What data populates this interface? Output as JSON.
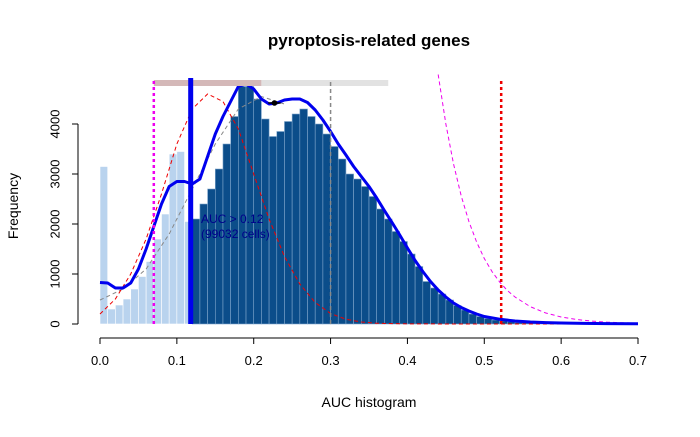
{
  "chart_data": {
    "type": "histogram",
    "title": "pyroptosis-related genes",
    "xlabel": "AUC histogram",
    "ylabel": "Frequency",
    "xlim": [
      0,
      0.7
    ],
    "ylim": [
      0,
      4800
    ],
    "x_ticks": [
      "0.0",
      "0.1",
      "0.2",
      "0.3",
      "0.4",
      "0.5",
      "0.6",
      "0.7"
    ],
    "x_tick_values": [
      0,
      0.1,
      0.2,
      0.3,
      0.4,
      0.5,
      0.6,
      0.7
    ],
    "y_ticks": [
      "0",
      "1000",
      "2000",
      "3000",
      "4000"
    ],
    "y_tick_values": [
      0,
      1000,
      2000,
      3000,
      4000
    ],
    "bin_width": 0.01,
    "bins": [
      {
        "x0": 0.0,
        "v": 3150
      },
      {
        "x0": 0.01,
        "v": 300
      },
      {
        "x0": 0.02,
        "v": 380
      },
      {
        "x0": 0.03,
        "v": 500
      },
      {
        "x0": 0.04,
        "v": 700
      },
      {
        "x0": 0.05,
        "v": 950
      },
      {
        "x0": 0.06,
        "v": 1250
      },
      {
        "x0": 0.07,
        "v": 1700
      },
      {
        "x0": 0.08,
        "v": 2200
      },
      {
        "x0": 0.09,
        "v": 3400
      },
      {
        "x0": 0.1,
        "v": 3450
      },
      {
        "x0": 0.11,
        "v": 2050
      },
      {
        "x0": 0.12,
        "v": 2100
      },
      {
        "x0": 0.13,
        "v": 2400
      },
      {
        "x0": 0.14,
        "v": 2700
      },
      {
        "x0": 0.15,
        "v": 3100
      },
      {
        "x0": 0.16,
        "v": 3600
      },
      {
        "x0": 0.17,
        "v": 4150
      },
      {
        "x0": 0.18,
        "v": 4750
      },
      {
        "x0": 0.19,
        "v": 4750
      },
      {
        "x0": 0.2,
        "v": 4500
      },
      {
        "x0": 0.21,
        "v": 4100
      },
      {
        "x0": 0.22,
        "v": 3750
      },
      {
        "x0": 0.23,
        "v": 3850
      },
      {
        "x0": 0.24,
        "v": 4050
      },
      {
        "x0": 0.25,
        "v": 4200
      },
      {
        "x0": 0.26,
        "v": 4300
      },
      {
        "x0": 0.27,
        "v": 4150
      },
      {
        "x0": 0.28,
        "v": 4000
      },
      {
        "x0": 0.29,
        "v": 3800
      },
      {
        "x0": 0.3,
        "v": 3550
      },
      {
        "x0": 0.31,
        "v": 3300
      },
      {
        "x0": 0.32,
        "v": 3000
      },
      {
        "x0": 0.33,
        "v": 2900
      },
      {
        "x0": 0.34,
        "v": 2750
      },
      {
        "x0": 0.35,
        "v": 2550
      },
      {
        "x0": 0.36,
        "v": 2300
      },
      {
        "x0": 0.37,
        "v": 2100
      },
      {
        "x0": 0.38,
        "v": 1850
      },
      {
        "x0": 0.39,
        "v": 1650
      },
      {
        "x0": 0.4,
        "v": 1400
      },
      {
        "x0": 0.41,
        "v": 1150
      },
      {
        "x0": 0.42,
        "v": 850
      },
      {
        "x0": 0.43,
        "v": 720
      },
      {
        "x0": 0.44,
        "v": 600
      },
      {
        "x0": 0.45,
        "v": 480
      },
      {
        "x0": 0.46,
        "v": 370
      },
      {
        "x0": 0.47,
        "v": 280
      },
      {
        "x0": 0.48,
        "v": 200
      },
      {
        "x0": 0.49,
        "v": 150
      },
      {
        "x0": 0.5,
        "v": 110
      },
      {
        "x0": 0.51,
        "v": 80
      },
      {
        "x0": 0.52,
        "v": 60
      },
      {
        "x0": 0.53,
        "v": 45
      },
      {
        "x0": 0.54,
        "v": 32
      },
      {
        "x0": 0.55,
        "v": 24
      },
      {
        "x0": 0.56,
        "v": 18
      },
      {
        "x0": 0.57,
        "v": 13
      },
      {
        "x0": 0.58,
        "v": 10
      },
      {
        "x0": 0.59,
        "v": 8
      },
      {
        "x0": 0.6,
        "v": 6
      },
      {
        "x0": 0.61,
        "v": 5
      },
      {
        "x0": 0.62,
        "v": 4
      },
      {
        "x0": 0.63,
        "v": 3
      },
      {
        "x0": 0.64,
        "v": 2
      },
      {
        "x0": 0.65,
        "v": 2
      },
      {
        "x0": 0.66,
        "v": 1
      },
      {
        "x0": 0.67,
        "v": 1
      },
      {
        "x0": 0.68,
        "v": 1
      },
      {
        "x0": 0.69,
        "v": 0
      }
    ],
    "threshold": 0.12,
    "colors": {
      "selected_bar": "#0b4d8a",
      "unselected_bar": "#b9d3ee",
      "bar_border": "#7fa6cc",
      "density": "#0000ee",
      "red_dashed": "#ee0000",
      "magenta_dashed": "#ee00ee",
      "threshold_line": "#0000ee",
      "gray_dashed": "#888888",
      "range_bar": "#e2e2e2",
      "range_bar_left": "#d4b8b8"
    },
    "density_curve": [
      {
        "x": 0.0,
        "y": 830
      },
      {
        "x": 0.01,
        "y": 820
      },
      {
        "x": 0.02,
        "y": 720
      },
      {
        "x": 0.03,
        "y": 720
      },
      {
        "x": 0.04,
        "y": 820
      },
      {
        "x": 0.05,
        "y": 1100
      },
      {
        "x": 0.06,
        "y": 1500
      },
      {
        "x": 0.07,
        "y": 1950
      },
      {
        "x": 0.08,
        "y": 2400
      },
      {
        "x": 0.09,
        "y": 2750
      },
      {
        "x": 0.1,
        "y": 2850
      },
      {
        "x": 0.11,
        "y": 2850
      },
      {
        "x": 0.12,
        "y": 2800
      },
      {
        "x": 0.13,
        "y": 2900
      },
      {
        "x": 0.14,
        "y": 3350
      },
      {
        "x": 0.15,
        "y": 3800
      },
      {
        "x": 0.16,
        "y": 4150
      },
      {
        "x": 0.17,
        "y": 4450
      },
      {
        "x": 0.18,
        "y": 4750
      },
      {
        "x": 0.19,
        "y": 4800
      },
      {
        "x": 0.2,
        "y": 4700
      },
      {
        "x": 0.21,
        "y": 4500
      },
      {
        "x": 0.22,
        "y": 4400
      },
      {
        "x": 0.23,
        "y": 4420
      },
      {
        "x": 0.24,
        "y": 4480
      },
      {
        "x": 0.25,
        "y": 4500
      },
      {
        "x": 0.26,
        "y": 4500
      },
      {
        "x": 0.27,
        "y": 4430
      },
      {
        "x": 0.28,
        "y": 4280
      },
      {
        "x": 0.29,
        "y": 4080
      },
      {
        "x": 0.3,
        "y": 3850
      },
      {
        "x": 0.31,
        "y": 3600
      },
      {
        "x": 0.32,
        "y": 3380
      },
      {
        "x": 0.33,
        "y": 3150
      },
      {
        "x": 0.34,
        "y": 2950
      },
      {
        "x": 0.35,
        "y": 2750
      },
      {
        "x": 0.36,
        "y": 2520
      },
      {
        "x": 0.37,
        "y": 2270
      },
      {
        "x": 0.38,
        "y": 2030
      },
      {
        "x": 0.39,
        "y": 1780
      },
      {
        "x": 0.4,
        "y": 1520
      },
      {
        "x": 0.41,
        "y": 1270
      },
      {
        "x": 0.42,
        "y": 1050
      },
      {
        "x": 0.43,
        "y": 850
      },
      {
        "x": 0.44,
        "y": 680
      },
      {
        "x": 0.45,
        "y": 540
      },
      {
        "x": 0.46,
        "y": 420
      },
      {
        "x": 0.47,
        "y": 330
      },
      {
        "x": 0.48,
        "y": 260
      },
      {
        "x": 0.49,
        "y": 200
      },
      {
        "x": 0.5,
        "y": 150
      },
      {
        "x": 0.52,
        "y": 95
      },
      {
        "x": 0.54,
        "y": 60
      },
      {
        "x": 0.56,
        "y": 40
      },
      {
        "x": 0.58,
        "y": 28
      },
      {
        "x": 0.6,
        "y": 20
      },
      {
        "x": 0.63,
        "y": 12
      },
      {
        "x": 0.66,
        "y": 8
      },
      {
        "x": 0.7,
        "y": 5
      }
    ],
    "red_dashed_curve": [
      {
        "x": 0.0,
        "y": 200
      },
      {
        "x": 0.02,
        "y": 500
      },
      {
        "x": 0.04,
        "y": 1000
      },
      {
        "x": 0.06,
        "y": 1700
      },
      {
        "x": 0.08,
        "y": 2600
      },
      {
        "x": 0.1,
        "y": 3600
      },
      {
        "x": 0.12,
        "y": 4300
      },
      {
        "x": 0.14,
        "y": 4600
      },
      {
        "x": 0.16,
        "y": 4450
      },
      {
        "x": 0.18,
        "y": 3900
      },
      {
        "x": 0.2,
        "y": 3000
      },
      {
        "x": 0.22,
        "y": 2100
      },
      {
        "x": 0.24,
        "y": 1350
      },
      {
        "x": 0.26,
        "y": 800
      },
      {
        "x": 0.28,
        "y": 430
      },
      {
        "x": 0.3,
        "y": 210
      },
      {
        "x": 0.32,
        "y": 95
      },
      {
        "x": 0.34,
        "y": 40
      },
      {
        "x": 0.36,
        "y": 15
      },
      {
        "x": 0.4,
        "y": 2
      },
      {
        "x": 0.5,
        "y": 0
      },
      {
        "x": 0.7,
        "y": 0
      }
    ],
    "gray_dashed_curve": [
      {
        "x": 0.0,
        "y": 480
      },
      {
        "x": 0.03,
        "y": 700
      },
      {
        "x": 0.06,
        "y": 1100
      },
      {
        "x": 0.09,
        "y": 1800
      },
      {
        "x": 0.12,
        "y": 2700
      },
      {
        "x": 0.15,
        "y": 3600
      },
      {
        "x": 0.18,
        "y": 4300
      },
      {
        "x": 0.21,
        "y": 4550
      },
      {
        "x": 0.24,
        "y": 4400
      }
    ],
    "magenta_dashed_curve": [
      {
        "x": 0.44,
        "y": 4990
      },
      {
        "x": 0.45,
        "y": 4000
      },
      {
        "x": 0.46,
        "y": 3200
      },
      {
        "x": 0.47,
        "y": 2560
      },
      {
        "x": 0.48,
        "y": 2050
      },
      {
        "x": 0.49,
        "y": 1640
      },
      {
        "x": 0.5,
        "y": 1310
      },
      {
        "x": 0.51,
        "y": 1050
      },
      {
        "x": 0.52,
        "y": 840
      },
      {
        "x": 0.53,
        "y": 670
      },
      {
        "x": 0.54,
        "y": 540
      },
      {
        "x": 0.56,
        "y": 345
      },
      {
        "x": 0.58,
        "y": 220
      },
      {
        "x": 0.6,
        "y": 140
      },
      {
        "x": 0.62,
        "y": 90
      },
      {
        "x": 0.64,
        "y": 58
      },
      {
        "x": 0.66,
        "y": 37
      },
      {
        "x": 0.68,
        "y": 24
      },
      {
        "x": 0.7,
        "y": 15
      }
    ],
    "vlines": [
      {
        "name": "magenta-threshold-line",
        "x": 0.07,
        "color": "#ee00ee",
        "dash": "3,3",
        "width": 2.5
      },
      {
        "name": "auc-threshold-line",
        "x": 0.118,
        "color": "#0000ee",
        "dash": "",
        "width": 5
      },
      {
        "name": "gray-threshold-line",
        "x": 0.3,
        "color": "#888888",
        "dash": "4,3",
        "width": 1.5
      },
      {
        "name": "red-threshold-line",
        "x": 0.522,
        "color": "#ee0000",
        "dash": "3,3",
        "width": 2.5
      }
    ],
    "range_bar": {
      "x0": 0.07,
      "x1": 0.375,
      "y": 4820,
      "split": 0.21
    },
    "mark_point": {
      "x": 0.227,
      "y": 4420,
      "err": 0.008
    },
    "annotation": {
      "line1": "AUC > 0.12",
      "line2": "(99032 cells)"
    }
  }
}
